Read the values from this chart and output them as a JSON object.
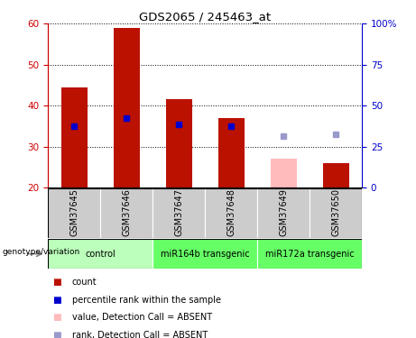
{
  "title": "GDS2065 / 245463_at",
  "samples": [
    "GSM37645",
    "GSM37646",
    "GSM37647",
    "GSM37648",
    "GSM37649",
    "GSM37650"
  ],
  "bar_values": [
    44.5,
    59.0,
    41.5,
    37.0,
    null,
    26.0
  ],
  "bar_absent": [
    null,
    null,
    null,
    null,
    27.0,
    null
  ],
  "rank_values": [
    35.0,
    37.0,
    35.5,
    35.0,
    null,
    null
  ],
  "rank_absent": [
    null,
    null,
    null,
    null,
    32.5,
    33.0
  ],
  "ymin": 20,
  "ymax": 60,
  "yticks_left": [
    20,
    30,
    40,
    50,
    60
  ],
  "yticks_right": [
    0,
    25,
    50,
    75,
    100
  ],
  "group_defs": [
    [
      0,
      2,
      "control",
      "#bbffbb"
    ],
    [
      2,
      4,
      "miR164b transgenic",
      "#66ff66"
    ],
    [
      4,
      6,
      "miR172a transgenic",
      "#66ff66"
    ]
  ],
  "bar_color": "#bb1100",
  "bar_absent_color": "#ffbbbb",
  "rank_color": "#0000cc",
  "rank_absent_color": "#9999cc",
  "sample_bg_color": "#cccccc",
  "left_axis_color": "#cc0000",
  "right_axis_color": "#0000cc",
  "legend_items": [
    [
      "#bb1100",
      "count"
    ],
    [
      "#0000cc",
      "percentile rank within the sample"
    ],
    [
      "#ffbbbb",
      "value, Detection Call = ABSENT"
    ],
    [
      "#9999cc",
      "rank, Detection Call = ABSENT"
    ]
  ]
}
